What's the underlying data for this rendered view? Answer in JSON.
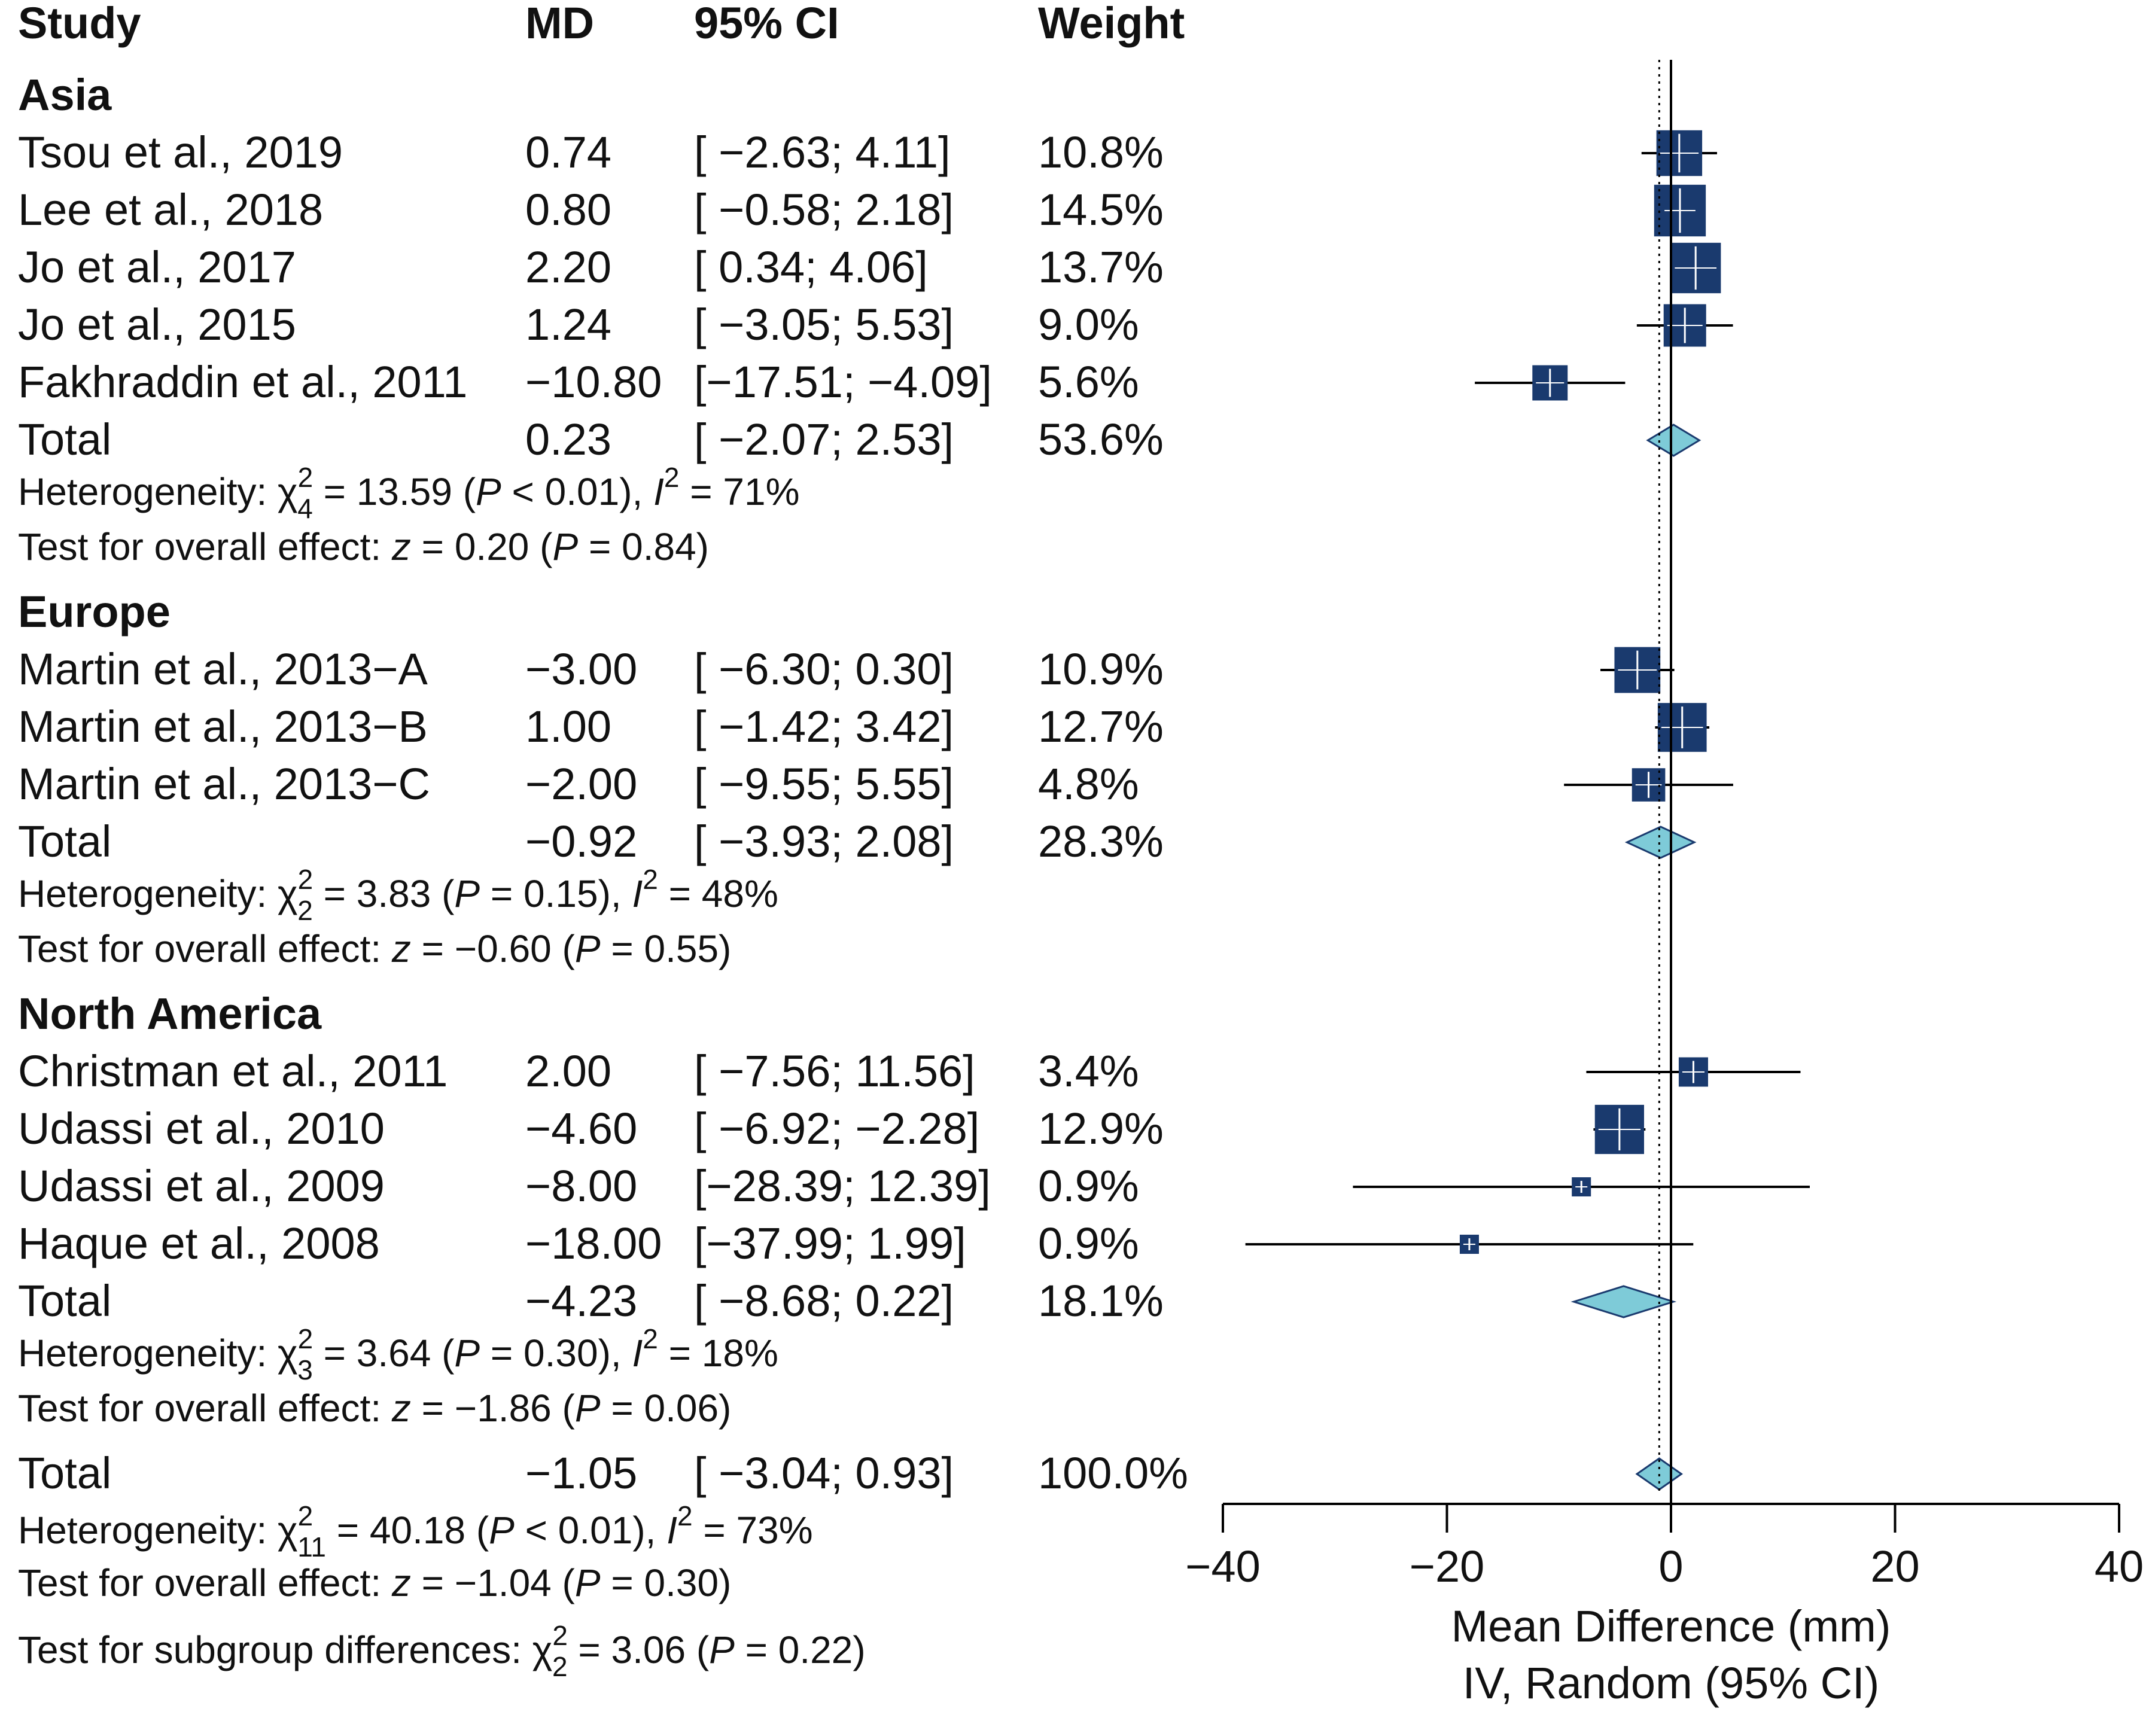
{
  "chart_data": {
    "type": "forest",
    "headers": {
      "study": "Study",
      "md": "MD",
      "ci": "95% CI",
      "weight": "Weight"
    },
    "groups": [
      {
        "name": "Asia",
        "studies": [
          {
            "study": "Tsou et al., 2019",
            "md_text": "0.74",
            "ci_text": "[ −2.63;  4.11]",
            "weight_text": "10.8%",
            "md": 0.74,
            "lo": -2.63,
            "hi": 4.11,
            "weight": 10.8
          },
          {
            "study": "Lee et al., 2018",
            "md_text": "0.80",
            "ci_text": "[ −0.58;  2.18]",
            "weight_text": "14.5%",
            "md": 0.8,
            "lo": -0.58,
            "hi": 2.18,
            "weight": 14.5
          },
          {
            "study": "Jo et al., 2017",
            "md_text": "2.20",
            "ci_text": "[  0.34;  4.06]",
            "weight_text": "13.7%",
            "md": 2.2,
            "lo": 0.34,
            "hi": 4.06,
            "weight": 13.7
          },
          {
            "study": "Jo et al., 2015",
            "md_text": "1.24",
            "ci_text": "[ −3.05;  5.53]",
            "weight_text": "9.0%",
            "md": 1.24,
            "lo": -3.05,
            "hi": 5.53,
            "weight": 9.0
          },
          {
            "study": "Fakhraddin et al., 2011",
            "md_text": "−10.80",
            "ci_text": "[−17.51; −4.09]",
            "weight_text": "5.6%",
            "md": -10.8,
            "lo": -17.51,
            "hi": -4.09,
            "weight": 5.6
          }
        ],
        "total": {
          "label": "Total",
          "md_text": "0.23",
          "ci_text": "[ −2.07;  2.53]",
          "weight_text": "53.6%",
          "md": 0.23,
          "lo": -2.07,
          "hi": 2.53
        },
        "heterogeneity": {
          "prefix": "Heterogeneity: χ",
          "sub": "4",
          "sup": "2",
          "mid": " = 13.59 (",
          "p": "P",
          "p_rest": " < 0.01), ",
          "i": "I",
          "i_sup": "2",
          "i_rest": " = 71%"
        },
        "overall": {
          "prefix": "Test for overall effect: ",
          "z": "z",
          "z_rest": " = 0.20 (",
          "p": "P",
          "p_rest": " = 0.84)"
        }
      },
      {
        "name": "Europe",
        "studies": [
          {
            "study": "Martin et al., 2013−A",
            "md_text": "−3.00",
            "ci_text": "[ −6.30;  0.30]",
            "weight_text": "10.9%",
            "md": -3.0,
            "lo": -6.3,
            "hi": 0.3,
            "weight": 10.9
          },
          {
            "study": "Martin et al., 2013−B",
            "md_text": "1.00",
            "ci_text": "[ −1.42;  3.42]",
            "weight_text": "12.7%",
            "md": 1.0,
            "lo": -1.42,
            "hi": 3.42,
            "weight": 12.7
          },
          {
            "study": "Martin et al., 2013−C",
            "md_text": "−2.00",
            "ci_text": "[ −9.55;  5.55]",
            "weight_text": "4.8%",
            "md": -2.0,
            "lo": -9.55,
            "hi": 5.55,
            "weight": 4.8
          }
        ],
        "total": {
          "label": "Total",
          "md_text": "−0.92",
          "ci_text": "[ −3.93;  2.08]",
          "weight_text": "28.3%",
          "md": -0.92,
          "lo": -3.93,
          "hi": 2.08
        },
        "heterogeneity": {
          "prefix": "Heterogeneity: χ",
          "sub": "2",
          "sup": "2",
          "mid": " = 3.83 (",
          "p": "P",
          "p_rest": " = 0.15), ",
          "i": "I",
          "i_sup": "2",
          "i_rest": " = 48%"
        },
        "overall": {
          "prefix": "Test for overall effect: ",
          "z": "z",
          "z_rest": " = −0.60 (",
          "p": "P",
          "p_rest": " = 0.55)"
        }
      },
      {
        "name": "North America",
        "studies": [
          {
            "study": "Christman et al., 2011",
            "md_text": "2.00",
            "ci_text": "[ −7.56; 11.56]",
            "weight_text": "3.4%",
            "md": 2.0,
            "lo": -7.56,
            "hi": 11.56,
            "weight": 3.4
          },
          {
            "study": "Udassi et al., 2010",
            "md_text": "−4.60",
            "ci_text": "[ −6.92; −2.28]",
            "weight_text": "12.9%",
            "md": -4.6,
            "lo": -6.92,
            "hi": -2.28,
            "weight": 12.9
          },
          {
            "study": "Udassi et al., 2009",
            "md_text": "−8.00",
            "ci_text": "[−28.39; 12.39]",
            "weight_text": "0.9%",
            "md": -8.0,
            "lo": -28.39,
            "hi": 12.39,
            "weight": 0.9
          },
          {
            "study": "Haque et al., 2008",
            "md_text": "−18.00",
            "ci_text": "[−37.99;  1.99]",
            "weight_text": "0.9%",
            "md": -18.0,
            "lo": -37.99,
            "hi": 1.99,
            "weight": 0.9
          }
        ],
        "total": {
          "label": "Total",
          "md_text": "−4.23",
          "ci_text": "[ −8.68;  0.22]",
          "weight_text": "18.1%",
          "md": -4.23,
          "lo": -8.68,
          "hi": 0.22
        },
        "heterogeneity": {
          "prefix": "Heterogeneity: χ",
          "sub": "3",
          "sup": "2",
          "mid": " = 3.64 (",
          "p": "P",
          "p_rest": " = 0.30), ",
          "i": "I",
          "i_sup": "2",
          "i_rest": " = 18%"
        },
        "overall": {
          "prefix": "Test for overall effect: ",
          "z": "z",
          "z_rest": " = −1.86 (",
          "p": "P",
          "p_rest": " = 0.06)"
        }
      }
    ],
    "overall_total": {
      "label": "Total",
      "md_text": "−1.05",
      "ci_text": "[ −3.04;  0.93]",
      "weight_text": "100.0%",
      "md": -1.05,
      "lo": -3.04,
      "hi": 0.93
    },
    "overall_heterogeneity": {
      "prefix": "Heterogeneity: χ",
      "sub": "11",
      "sup": "2",
      "mid": " = 40.18 (",
      "p": "P",
      "p_rest": " < 0.01), ",
      "i": "I",
      "i_sup": "2",
      "i_rest": " = 73%"
    },
    "overall_effect": {
      "prefix": "Test for overall effect: ",
      "z": "z",
      "z_rest": " = −1.04 (",
      "p": "P",
      "p_rest": " = 0.30)"
    },
    "subgroup_test": {
      "prefix": "Test for subgroup differences: χ",
      "sub": "2",
      "sup": "2",
      "mid": " = 3.06 (",
      "p": "P",
      "p_rest": " = 0.22)"
    },
    "x_axis": {
      "ticks": [
        -40,
        -20,
        0,
        20,
        40
      ],
      "tick_labels": [
        "−40",
        "−20",
        "0",
        "20",
        "40"
      ],
      "xlim": [
        -40,
        40
      ],
      "title_line1": "Mean Difference (mm)",
      "title_line2": "IV, Random (95% CI)"
    },
    "reference_line": 0,
    "overall_line": -1.05,
    "colors": {
      "square": "#1a3a6e",
      "diamond": "#7ecbd8",
      "diamond_stroke": "#1a3a6e",
      "line": "#000000"
    }
  }
}
